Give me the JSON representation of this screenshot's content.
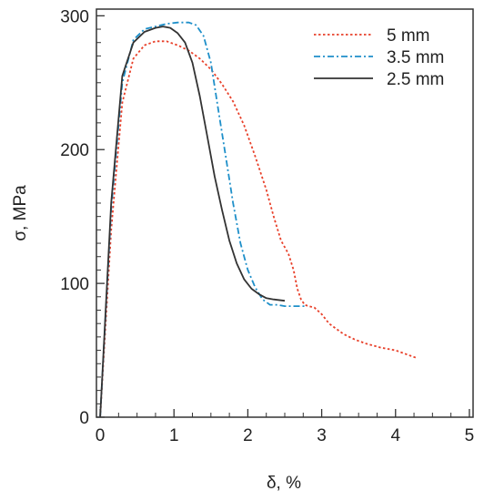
{
  "chart_data": {
    "type": "line",
    "title": "",
    "xlabel": "δ, %",
    "ylabel": "σ, MPa",
    "xlim": [
      -0.05,
      5.05
    ],
    "ylim": [
      0,
      305
    ],
    "x_ticks": [
      0,
      1,
      2,
      3,
      4,
      5
    ],
    "y_ticks": [
      0,
      100,
      200,
      300
    ],
    "x_tick_labels": [
      "0",
      "1",
      "2",
      "3",
      "4",
      "5"
    ],
    "y_tick_labels": [
      "0",
      "100",
      "200",
      "300"
    ],
    "x_minor_step": 0.25,
    "y_minor_step": 10,
    "grid": false,
    "legend_position": "top-right",
    "series": [
      {
        "name": "5 mm",
        "color": "#e8402a",
        "dash": "dotted",
        "points": [
          [
            0,
            0
          ],
          [
            0.15,
            140
          ],
          [
            0.3,
            235
          ],
          [
            0.45,
            268
          ],
          [
            0.6,
            278
          ],
          [
            0.75,
            281
          ],
          [
            0.9,
            281
          ],
          [
            1.05,
            278
          ],
          [
            1.2,
            274
          ],
          [
            1.35,
            268
          ],
          [
            1.5,
            260
          ],
          [
            1.65,
            249
          ],
          [
            1.8,
            236
          ],
          [
            1.95,
            218
          ],
          [
            2.1,
            195
          ],
          [
            2.25,
            170
          ],
          [
            2.35,
            150
          ],
          [
            2.45,
            132
          ],
          [
            2.55,
            122
          ],
          [
            2.62,
            110
          ],
          [
            2.67,
            96
          ],
          [
            2.72,
            88
          ],
          [
            2.77,
            84
          ],
          [
            2.82,
            83
          ],
          [
            2.9,
            82
          ],
          [
            3.0,
            77
          ],
          [
            3.1,
            70
          ],
          [
            3.2,
            66
          ],
          [
            3.3,
            62
          ],
          [
            3.45,
            58
          ],
          [
            3.6,
            55
          ],
          [
            3.8,
            52
          ],
          [
            4.0,
            50
          ],
          [
            4.15,
            47
          ],
          [
            4.3,
            44
          ]
        ]
      },
      {
        "name": "3.5 mm",
        "color": "#1e8fc9",
        "dash": "dashdot",
        "points": [
          [
            0,
            0
          ],
          [
            0.15,
            155
          ],
          [
            0.3,
            250
          ],
          [
            0.45,
            282
          ],
          [
            0.6,
            290
          ],
          [
            0.75,
            292
          ],
          [
            0.9,
            294
          ],
          [
            1.05,
            295
          ],
          [
            1.2,
            295
          ],
          [
            1.3,
            293
          ],
          [
            1.4,
            285
          ],
          [
            1.5,
            265
          ],
          [
            1.6,
            230
          ],
          [
            1.7,
            195
          ],
          [
            1.8,
            160
          ],
          [
            1.9,
            130
          ],
          [
            2.0,
            110
          ],
          [
            2.1,
            97
          ],
          [
            2.2,
            88
          ],
          [
            2.3,
            84
          ],
          [
            2.4,
            84
          ],
          [
            2.5,
            83
          ],
          [
            2.6,
            83
          ],
          [
            2.7,
            83
          ],
          [
            2.78,
            83
          ]
        ]
      },
      {
        "name": "2.5 mm",
        "color": "#333333",
        "dash": "solid",
        "points": [
          [
            0,
            0
          ],
          [
            0.15,
            160
          ],
          [
            0.3,
            255
          ],
          [
            0.45,
            280
          ],
          [
            0.6,
            288
          ],
          [
            0.75,
            291
          ],
          [
            0.85,
            292
          ],
          [
            0.95,
            291
          ],
          [
            1.05,
            287
          ],
          [
            1.15,
            280
          ],
          [
            1.25,
            265
          ],
          [
            1.35,
            240
          ],
          [
            1.45,
            210
          ],
          [
            1.55,
            180
          ],
          [
            1.65,
            155
          ],
          [
            1.75,
            132
          ],
          [
            1.85,
            115
          ],
          [
            1.95,
            103
          ],
          [
            2.05,
            96
          ],
          [
            2.15,
            92
          ],
          [
            2.25,
            89
          ],
          [
            2.35,
            88
          ],
          [
            2.5,
            87
          ]
        ]
      }
    ]
  }
}
